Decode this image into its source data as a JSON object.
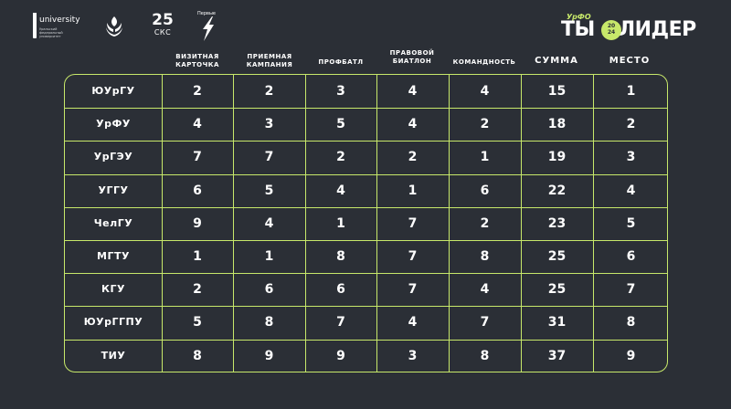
{
  "logos": {
    "university_word": "university",
    "university_sub": "Уральский федеральный университет",
    "ska_number": "25",
    "ska_text": "СКС",
    "pervye_text": "Первые"
  },
  "brand": {
    "urfo": "УрФО",
    "ty": "ТЫ",
    "year_top": "20",
    "year_bottom": "24",
    "lider": "ЛИДЕР"
  },
  "columns": [
    "ВИЗИТНАЯ КАРТОЧКА",
    "ПРИЕМНАЯ КАМПАНИЯ",
    "ПРОФБАТЛ",
    "ПРАВОВОЙ БИАТЛОН",
    "КОМАНДНОСТЬ",
    "СУММА",
    "МЕСТО"
  ],
  "rows": [
    {
      "name": "ЮУрГУ",
      "values": [
        "2",
        "2",
        "3",
        "4",
        "4",
        "15",
        "1"
      ]
    },
    {
      "name": "УрФУ",
      "values": [
        "4",
        "3",
        "5",
        "4",
        "2",
        "18",
        "2"
      ]
    },
    {
      "name": "УрГЭУ",
      "values": [
        "7",
        "7",
        "2",
        "2",
        "1",
        "19",
        "3"
      ]
    },
    {
      "name": "УГГУ",
      "values": [
        "6",
        "5",
        "4",
        "1",
        "6",
        "22",
        "4"
      ]
    },
    {
      "name": "ЧелГУ",
      "values": [
        "9",
        "4",
        "1",
        "7",
        "2",
        "23",
        "5"
      ]
    },
    {
      "name": "МГТУ",
      "values": [
        "1",
        "1",
        "8",
        "7",
        "8",
        "25",
        "6"
      ]
    },
    {
      "name": "КГУ",
      "values": [
        "2",
        "6",
        "6",
        "7",
        "4",
        "25",
        "7"
      ]
    },
    {
      "name": "ЮУрГГПУ",
      "values": [
        "5",
        "8",
        "7",
        "4",
        "7",
        "31",
        "8"
      ]
    },
    {
      "name": "ТИУ",
      "values": [
        "8",
        "9",
        "9",
        "3",
        "8",
        "37",
        "9"
      ]
    }
  ],
  "colors": {
    "background": "#2b2f36",
    "accent": "#c7e86a",
    "text": "#ffffff"
  }
}
